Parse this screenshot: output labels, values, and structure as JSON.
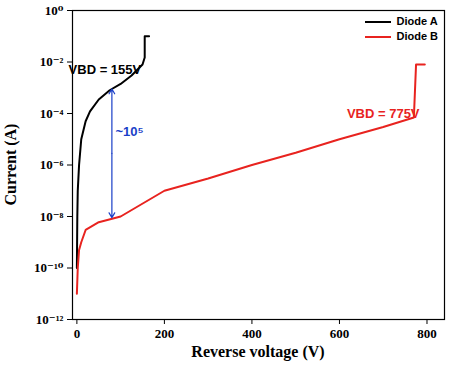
{
  "chart_data": {
    "type": "line",
    "x_label": "Reverse voltage (V)",
    "y_label": "Current (A)",
    "log": "y",
    "grid": false,
    "legend": "top-right",
    "xlim": [
      -10,
      840
    ],
    "ylim": [
      1e-12,
      1
    ],
    "xticks": [
      0,
      200,
      400,
      600,
      800
    ],
    "yticks": [
      {
        "value": 1e-12,
        "label": "10⁻¹²"
      },
      {
        "value": 1e-10,
        "label": "10⁻¹⁰"
      },
      {
        "value": 1e-08,
        "label": "10⁻⁸"
      },
      {
        "value": 1e-06,
        "label": "10⁻⁶"
      },
      {
        "value": 0.0001,
        "label": "10⁻⁴"
      },
      {
        "value": 0.01,
        "label": "10⁻²"
      },
      {
        "value": 1,
        "label": "10⁰"
      }
    ],
    "series": [
      {
        "name": "Diode A",
        "color": "#000000",
        "x": [
          0,
          1,
          2,
          5,
          10,
          20,
          30,
          50,
          75,
          100,
          125,
          150,
          155,
          155,
          165
        ],
        "values": [
          1e-10,
          1e-08,
          1e-07,
          1e-06,
          1e-05,
          5e-05,
          0.00012,
          0.00035,
          0.0008,
          0.0014,
          0.003,
          0.008,
          0.015,
          0.1,
          0.1
        ]
      },
      {
        "name": "Diode B",
        "color": "#e8231f",
        "x": [
          0,
          2,
          5,
          10,
          20,
          50,
          100,
          200,
          300,
          400,
          500,
          600,
          700,
          770,
          775,
          795
        ],
        "values": [
          1e-11,
          1e-10,
          5e-10,
          1e-09,
          3e-09,
          6e-09,
          1e-08,
          1e-07,
          3e-07,
          1e-06,
          3e-06,
          1e-05,
          3e-05,
          7e-05,
          0.008,
          0.008
        ]
      }
    ],
    "annotations": [
      {
        "text": "VBD = 155V",
        "x": 64,
        "y": 0.005,
        "color": "#000000"
      },
      {
        "text": "VBD = 775V",
        "x": 700,
        "y": 0.0001,
        "color": "#e8231f"
      },
      {
        "text": "~10⁵",
        "x": 88,
        "y": 2e-05,
        "color": "#1a3fc8"
      }
    ],
    "arrow": {
      "x": 80,
      "y1": 9e-09,
      "y2": 0.0009,
      "color": "#1a3fc8"
    }
  }
}
